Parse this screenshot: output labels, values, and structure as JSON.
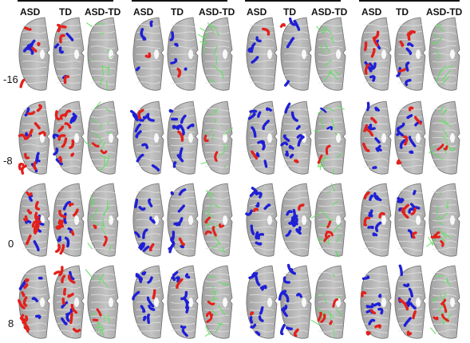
{
  "headers": [
    [
      "ASD",
      "TD",
      "ASD-TD"
    ],
    [
      "ASD",
      "TD",
      "ASD-TD"
    ],
    [
      "ASD",
      "TD",
      "ASD-TD"
    ],
    [
      "ASD",
      "TD",
      "ASD-TD"
    ]
  ],
  "rows": [
    "-16",
    "-8",
    "0",
    "8"
  ],
  "colors": {
    "asd_tract": "#e3201b",
    "td_tract": "#1f1fd6",
    "diff_tract": "#5be05b",
    "brain_fill": "#bdbdbd",
    "brain_dark": "#7a7a7a",
    "background": "#ffffff"
  }
}
